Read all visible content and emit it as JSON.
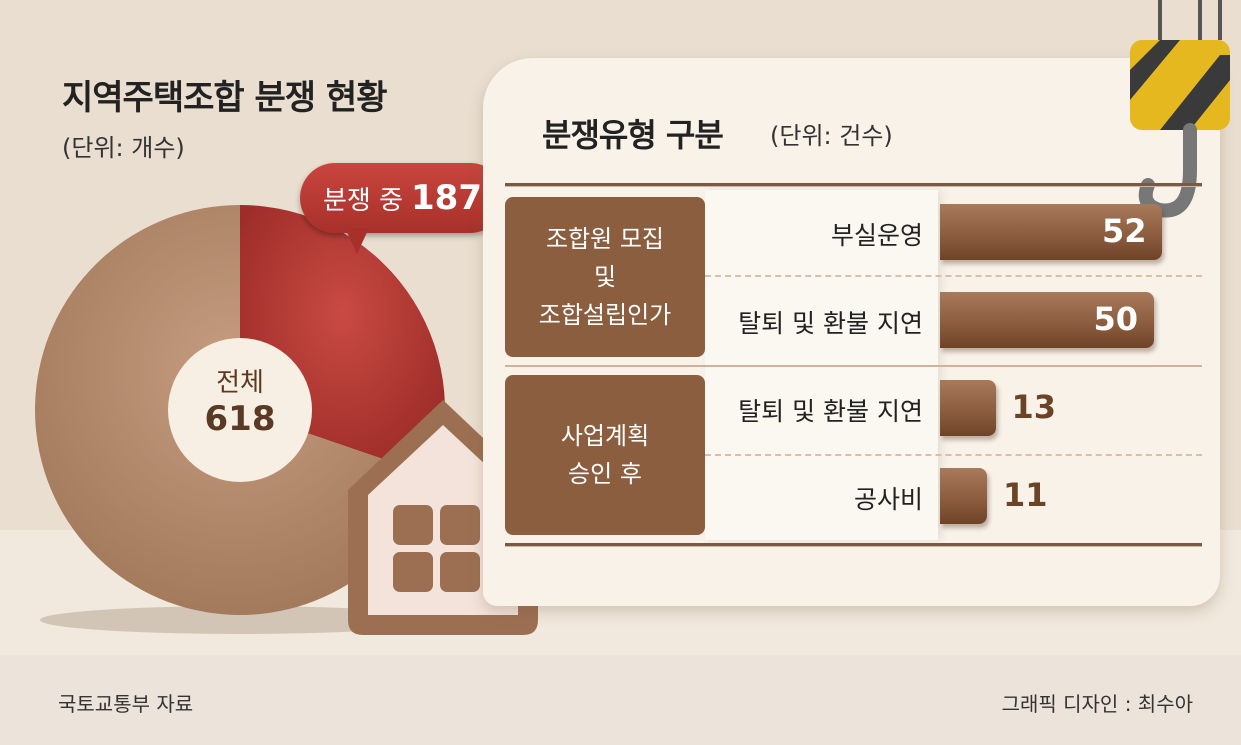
{
  "left": {
    "title": "지역주택조합 분쟁 현황",
    "unit": "(단위: 개수)",
    "total_label": "전체",
    "total_value": "618",
    "dispute_label": "분쟁 중",
    "dispute_value": "187"
  },
  "right": {
    "title": "분쟁유형 구분",
    "unit": "(단위: 건수)",
    "groups": [
      "조합원 모집\n및\n조합설립인가",
      "사업계획\n승인 후"
    ]
  },
  "footer": {
    "source": "국토교통부 자료",
    "credit": "그래픽 디자인 : 최수아"
  },
  "colors": {
    "dispute": "#b5342f",
    "other": "#b48a6c",
    "bar": "#8a5a3c",
    "group_box": "#8b5e40"
  },
  "chart_data": [
    {
      "type": "pie",
      "title": "지역주택조합 분쟁 현황",
      "unit": "(단위: 개수)",
      "total": 618,
      "slices": [
        {
          "label": "분쟁 중",
          "value": 187
        },
        {
          "label": "",
          "value": 431
        }
      ]
    },
    {
      "type": "bar",
      "orientation": "horizontal",
      "title": "분쟁유형 구분",
      "unit": "(단위: 건수)",
      "categories": [
        "부실운영",
        "탈퇴 및 환불 지연",
        "탈퇴 및 환불 지연",
        "공사비"
      ],
      "groups": [
        "조합원 모집 및 조합설립인가",
        "조합원 모집 및 조합설립인가",
        "사업계획 승인 후",
        "사업계획 승인 후"
      ],
      "values": [
        52,
        50,
        13,
        11
      ],
      "labels": [
        "52",
        "50",
        "13",
        "11"
      ]
    }
  ]
}
